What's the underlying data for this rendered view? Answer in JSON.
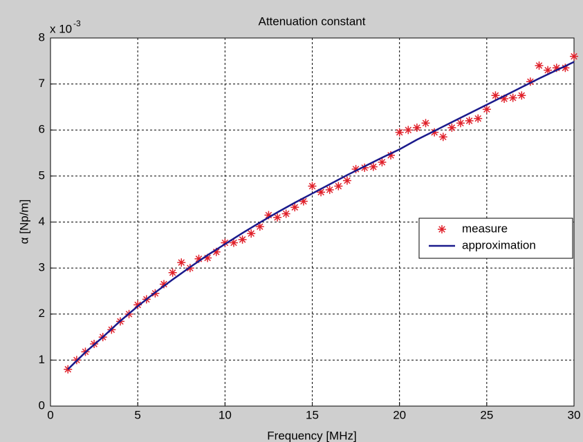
{
  "chart_data": {
    "type": "line",
    "title": "Attenuation constant",
    "xlabel": "Frequency [MHz]",
    "ylabel": "α [Np/m]",
    "y_multiplier": "x 10",
    "y_multiplier_exponent": "-3",
    "xlim": [
      0,
      30
    ],
    "xticks": [
      0,
      5,
      10,
      15,
      20,
      25,
      30
    ],
    "ylim": [
      0,
      8
    ],
    "yticks": [
      0,
      1,
      2,
      3,
      4,
      5,
      6,
      7,
      8
    ],
    "grid": true,
    "legend": "right",
    "series": [
      {
        "name": "measure",
        "color": "#e0202a",
        "marker": "*",
        "x": [
          1,
          1.5,
          2,
          2.5,
          3,
          3.5,
          4,
          4.5,
          5,
          5.5,
          6,
          6.5,
          7,
          7.5,
          8,
          8.5,
          9,
          9.5,
          10,
          10.5,
          11,
          11.5,
          12,
          12.5,
          13,
          13.5,
          14,
          14.5,
          15,
          15.5,
          16,
          16.5,
          17,
          17.5,
          18,
          18.5,
          19,
          19.5,
          20,
          20.5,
          21,
          21.5,
          22,
          22.5,
          23,
          23.5,
          24,
          24.5,
          25,
          25.5,
          26,
          26.5,
          27,
          27.5,
          28,
          28.5,
          29,
          29.5,
          30
        ],
        "values": [
          0.8,
          1.0,
          1.18,
          1.35,
          1.5,
          1.66,
          1.84,
          2.0,
          2.2,
          2.32,
          2.45,
          2.65,
          2.9,
          3.12,
          3.0,
          3.2,
          3.22,
          3.35,
          3.55,
          3.55,
          3.62,
          3.75,
          3.9,
          4.15,
          4.1,
          4.18,
          4.32,
          4.45,
          4.78,
          4.65,
          4.7,
          4.78,
          4.9,
          5.15,
          5.18,
          5.2,
          5.3,
          5.45,
          5.95,
          6.0,
          6.05,
          6.15,
          5.95,
          5.85,
          6.05,
          6.15,
          6.2,
          6.25,
          6.45,
          6.75,
          6.68,
          6.7,
          6.75,
          7.05,
          7.4,
          7.3,
          7.35,
          7.35,
          7.6
        ]
      },
      {
        "name": "approximation",
        "color": "#1a1a8c",
        "x": [
          1,
          2,
          3,
          4,
          5,
          6,
          7,
          8,
          9,
          10,
          11,
          12,
          13,
          14,
          15,
          16,
          17,
          18,
          19,
          20,
          21,
          22,
          23,
          24,
          25,
          26,
          27,
          28,
          29,
          30
        ],
        "values": [
          0.8,
          1.17,
          1.5,
          1.85,
          2.17,
          2.47,
          2.75,
          3.02,
          3.28,
          3.52,
          3.76,
          3.99,
          4.21,
          4.42,
          4.62,
          4.82,
          5.02,
          5.21,
          5.4,
          5.58,
          5.79,
          5.98,
          6.17,
          6.36,
          6.55,
          6.74,
          6.93,
          7.12,
          7.3,
          7.48
        ]
      }
    ]
  }
}
